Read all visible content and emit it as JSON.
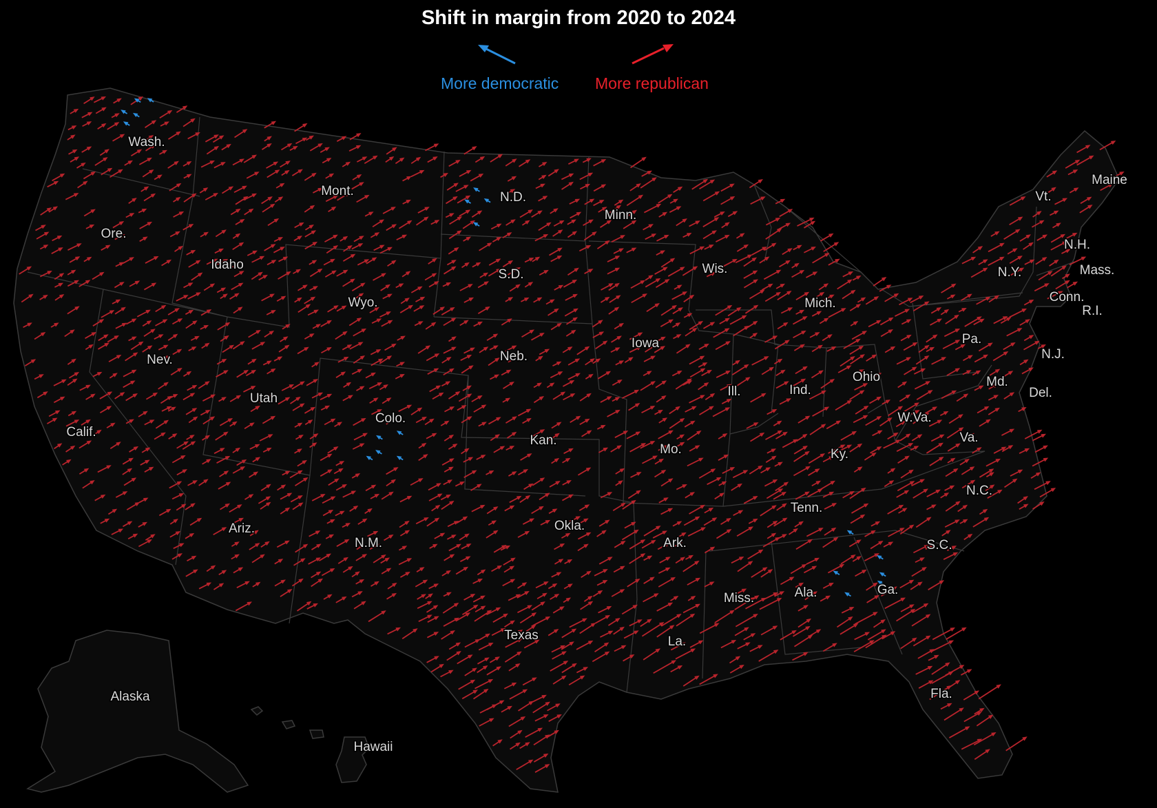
{
  "title": "Shift in margin from 2020 to 2024",
  "legend": {
    "dem_label": "More democratic",
    "rep_label": "More republican",
    "dem_color": "#2b8fe0",
    "rep_color": "#e8202a"
  },
  "map": {
    "background": "#0b0b0b",
    "border_color": "#3a3a3a",
    "arrow_rep_color": "#b8242c",
    "arrow_dem_color": "#2b8fe0",
    "state_labels": [
      "Wash.",
      "Ore.",
      "Calif.",
      "Nev.",
      "Idaho",
      "Mont.",
      "Wyo.",
      "Utah",
      "Colo.",
      "Ariz.",
      "N.M.",
      "N.D.",
      "S.D.",
      "Neb.",
      "Kan.",
      "Okla.",
      "Texas",
      "Minn.",
      "Iowa",
      "Mo.",
      "Ark.",
      "La.",
      "Wis.",
      "Ill.",
      "Mich.",
      "Ind.",
      "Ohio",
      "Ky.",
      "Tenn.",
      "Miss.",
      "Ala.",
      "Ga.",
      "Fla.",
      "S.C.",
      "N.C.",
      "Va.",
      "W.Va.",
      "Pa.",
      "N.Y.",
      "Vt.",
      "N.H.",
      "Maine",
      "Mass.",
      "Conn.",
      "R.I.",
      "N.J.",
      "Md.",
      "Del.",
      "Alaska",
      "Hawaii"
    ]
  }
}
